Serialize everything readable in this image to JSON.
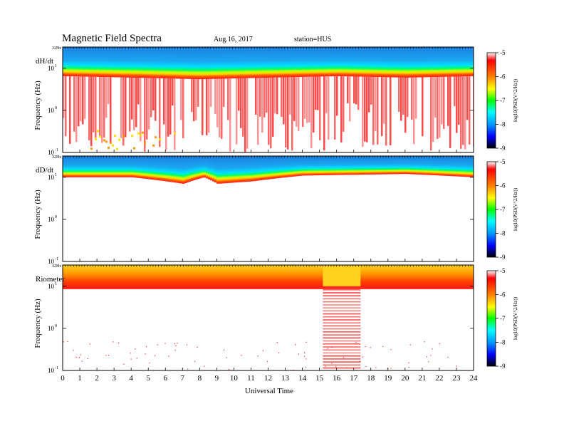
{
  "header": {
    "title": "Magnetic  Field  Spectra",
    "date": "Aug.16, 2017",
    "station": "station=HUS"
  },
  "chart_data": {
    "type": "heatmap",
    "x": {
      "label": "Universal Time",
      "range": [
        0,
        24
      ],
      "ticks": [
        "0",
        "1",
        "2",
        "3",
        "4",
        "5",
        "6",
        "7",
        "8",
        "9",
        "10",
        "11",
        "12",
        "13",
        "14",
        "15",
        "16",
        "17",
        "18",
        "19",
        "20",
        "21",
        "22",
        "23",
        "24"
      ]
    },
    "y": {
      "scale": "log",
      "top_label": "32Hz",
      "ticks": [
        {
          "base": "10",
          "exp": "1",
          "value": 10
        },
        {
          "base": "10",
          "exp": "0",
          "value": 1
        },
        {
          "base": "10",
          "exp": "-1",
          "value": 0.1
        }
      ]
    },
    "colorbar": {
      "label": "log10(PSD(V^2/Hz))",
      "ticks": [
        "-5",
        "-6",
        "-7",
        "-8",
        "-9"
      ],
      "range": [
        -9,
        -5
      ],
      "colors": [
        "#000000",
        "#0000ff",
        "#0099ff",
        "#00ffff",
        "#00ff00",
        "#ffff00",
        "#ff8000",
        "#ff0000",
        "#ffffff"
      ]
    },
    "panels": [
      {
        "name": "dH/dt",
        "ylabel": "Frequency  (Hz)",
        "profile": [
          {
            "x": 0,
            "edge_hz": 6.5
          },
          {
            "x": 4,
            "edge_hz": 6.0
          },
          {
            "x": 8,
            "edge_hz": 5.5
          },
          {
            "x": 12,
            "edge_hz": 6.0
          },
          {
            "x": 16,
            "edge_hz": 6.5
          },
          {
            "x": 20,
            "edge_hz": 6.0
          },
          {
            "x": 24,
            "edge_hz": 6.5
          }
        ],
        "activity_note_hz_floor": 0.1
      },
      {
        "name": "dD/dt",
        "ylabel": "Frequency  (Hz)",
        "profile": [
          {
            "x": 0,
            "edge_hz": 10
          },
          {
            "x": 4,
            "edge_hz": 10
          },
          {
            "x": 7,
            "edge_hz": 7
          },
          {
            "x": 8.2,
            "edge_hz": 10
          },
          {
            "x": 9,
            "edge_hz": 7
          },
          {
            "x": 11,
            "edge_hz": 8
          },
          {
            "x": 14,
            "edge_hz": 11
          },
          {
            "x": 20,
            "edge_hz": 12
          },
          {
            "x": 24,
            "edge_hz": 10
          }
        ]
      },
      {
        "name": "Riometer",
        "ylabel": "Frequency  (Hz)",
        "profile": [
          {
            "x": 0,
            "edge_hz": 10
          },
          {
            "x": 12.7,
            "edge_hz": 10
          },
          {
            "x": 15.2,
            "edge_hz": 10
          },
          {
            "x": 17.4,
            "edge_hz": 10
          },
          {
            "x": 24,
            "edge_hz": 10
          }
        ],
        "broadband_interval": [
          15.2,
          17.4
        ]
      }
    ]
  }
}
